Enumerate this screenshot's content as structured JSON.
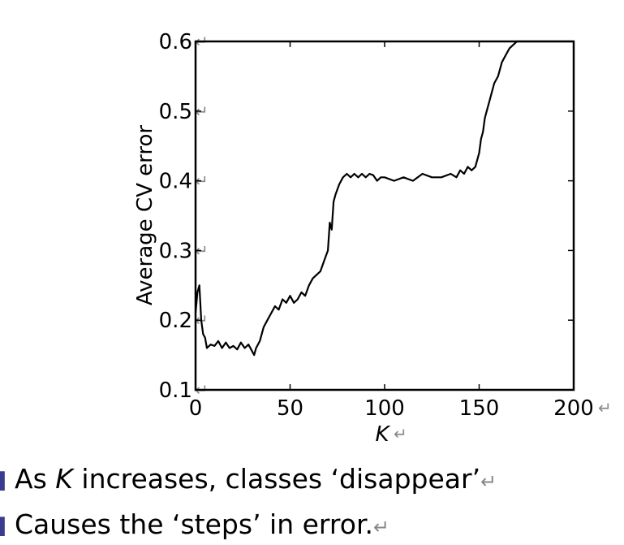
{
  "chart_data": {
    "type": "line",
    "xlabel": "K",
    "ylabel": "Average CV error",
    "xlim": [
      0,
      200
    ],
    "ylim": [
      0.1,
      0.6
    ],
    "x_ticks": [
      "0",
      "50",
      "100",
      "150",
      "200"
    ],
    "y_ticks": [
      "0.1",
      "0.2",
      "0.3",
      "0.4",
      "0.5",
      "0.6"
    ],
    "grid": false,
    "series": [
      {
        "x": [
          0,
          1,
          2,
          3,
          4,
          5,
          6,
          8,
          10,
          12,
          14,
          16,
          18,
          20,
          22,
          24,
          26,
          28,
          30,
          31,
          32,
          34,
          36,
          38,
          40,
          42,
          44,
          46,
          48,
          50,
          52,
          54,
          56,
          58,
          60,
          62,
          64,
          66,
          68,
          70,
          71,
          72,
          73,
          74,
          76,
          78,
          80,
          82,
          84,
          86,
          88,
          90,
          92,
          94,
          96,
          98,
          100,
          105,
          110,
          115,
          120,
          125,
          130,
          135,
          138,
          140,
          142,
          144,
          146,
          148,
          150,
          151,
          152,
          153,
          154,
          156,
          158,
          160,
          162,
          164,
          166,
          168,
          170,
          172,
          174,
          176,
          180,
          200
        ],
        "y": [
          0.21,
          0.24,
          0.25,
          0.2,
          0.18,
          0.175,
          0.16,
          0.165,
          0.163,
          0.17,
          0.16,
          0.168,
          0.16,
          0.163,
          0.158,
          0.168,
          0.16,
          0.165,
          0.155,
          0.15,
          0.16,
          0.17,
          0.19,
          0.2,
          0.21,
          0.22,
          0.215,
          0.23,
          0.225,
          0.235,
          0.225,
          0.23,
          0.24,
          0.235,
          0.25,
          0.26,
          0.265,
          0.27,
          0.285,
          0.3,
          0.34,
          0.33,
          0.37,
          0.38,
          0.395,
          0.405,
          0.41,
          0.405,
          0.41,
          0.405,
          0.41,
          0.405,
          0.41,
          0.408,
          0.4,
          0.405,
          0.405,
          0.4,
          0.405,
          0.4,
          0.41,
          0.405,
          0.405,
          0.41,
          0.405,
          0.415,
          0.41,
          0.42,
          0.415,
          0.42,
          0.44,
          0.46,
          0.47,
          0.49,
          0.5,
          0.52,
          0.54,
          0.55,
          0.57,
          0.58,
          0.59,
          0.595,
          0.6,
          0.6,
          0.6,
          0.6,
          0.6,
          0.6
        ]
      }
    ]
  },
  "bullets": [
    {
      "pre": "As ",
      "em": "K",
      "post": " increases, classes ‘disappear’",
      "ret": "↵"
    },
    {
      "pre": "Causes the ‘steps’ in error.",
      "em": "",
      "post": "",
      "ret": "↵"
    }
  ],
  "return_mark": "↵",
  "colors": {
    "line": "#000000",
    "bullet": "#3b3b8f",
    "mark": "#888888"
  }
}
